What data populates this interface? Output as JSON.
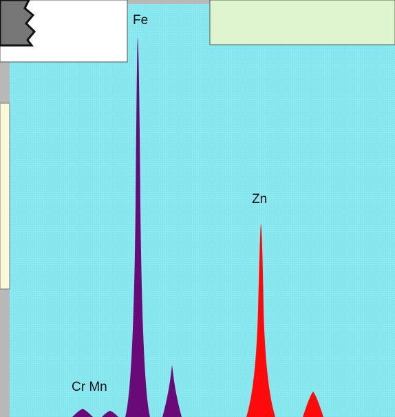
{
  "labels": {
    "fe": "Fe",
    "zn": "Zn",
    "cr_mn": "Cr Mn"
  }
}
